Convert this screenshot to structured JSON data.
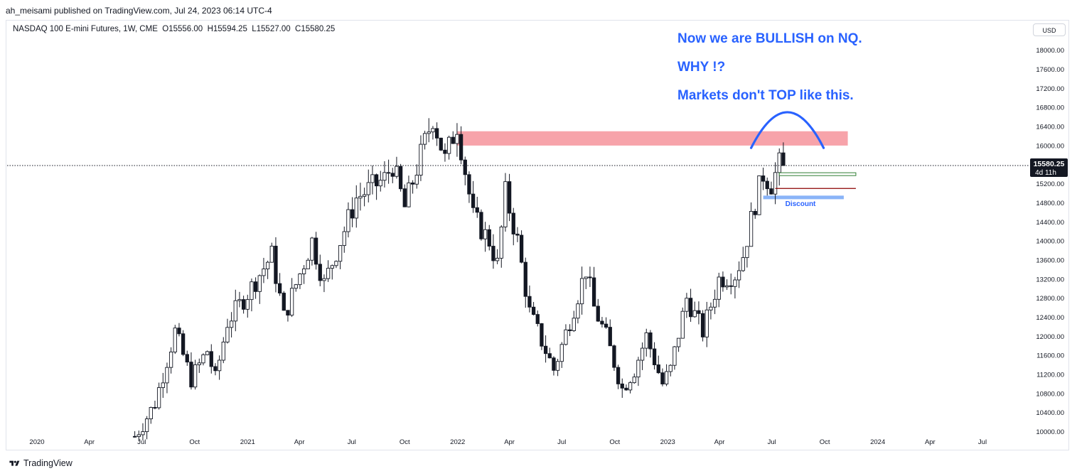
{
  "publisher_line": "ah_meisami published on TradingView.com, Jul 24, 2023 06:14 UTC-4",
  "legend": {
    "symbol": "NASDAQ 100 E-mini Futures, 1W, CME",
    "open": "O15556.00",
    "high": "H15594.25",
    "low": "L15527.00",
    "close": "C15580.25"
  },
  "currency_button": "USD",
  "annotations": {
    "line1": "Now we are BULLISH on NQ.",
    "line2": "WHY !?",
    "line3": "Markets don't TOP like this.",
    "discount_label": "Discount"
  },
  "price_tag": {
    "value": "15580.25",
    "countdown": "4d 11h"
  },
  "footer": {
    "brand": "TradingView"
  },
  "chart_data": {
    "type": "candlestick",
    "timeframe": "1W",
    "y_axis": {
      "ticks": [
        "18000.00",
        "17600.00",
        "17200.00",
        "16800.00",
        "16400.00",
        "16000.00",
        "15600.00",
        "15200.00",
        "14800.00",
        "14400.00",
        "14000.00",
        "13600.00",
        "13200.00",
        "12800.00",
        "12400.00",
        "12000.00",
        "11600.00",
        "11200.00",
        "10800.00",
        "10400.00",
        "10000.00"
      ],
      "range": [
        9900,
        18200
      ]
    },
    "x_axis": {
      "ticks": [
        {
          "label": "2020",
          "date": "2020-01-01"
        },
        {
          "label": "Apr",
          "date": "2020-04-01"
        },
        {
          "label": "Jul",
          "date": "2020-07-01"
        },
        {
          "label": "Oct",
          "date": "2020-10-01"
        },
        {
          "label": "2021",
          "date": "2021-01-01"
        },
        {
          "label": "Apr",
          "date": "2021-04-01"
        },
        {
          "label": "Jul",
          "date": "2021-07-01"
        },
        {
          "label": "Oct",
          "date": "2021-10-01"
        },
        {
          "label": "2022",
          "date": "2022-01-01"
        },
        {
          "label": "Apr",
          "date": "2022-04-01"
        },
        {
          "label": "Jul",
          "date": "2022-07-01"
        },
        {
          "label": "Oct",
          "date": "2022-10-01"
        },
        {
          "label": "2023",
          "date": "2023-01-01"
        },
        {
          "label": "Apr",
          "date": "2023-04-01"
        },
        {
          "label": "Jul",
          "date": "2023-07-01"
        },
        {
          "label": "Oct",
          "date": "2023-10-01"
        },
        {
          "label": "2024",
          "date": "2024-01-01"
        },
        {
          "label": "Apr",
          "date": "2024-04-01"
        },
        {
          "label": "Jul",
          "date": "2024-07-01"
        }
      ]
    },
    "last_close": 15580.25,
    "price_path": [
      [
        "2020-06-19",
        9900
      ],
      [
        "2020-07-03",
        10150
      ],
      [
        "2020-07-24",
        10600
      ],
      [
        "2020-08-28",
        12100
      ],
      [
        "2020-09-25",
        11100
      ],
      [
        "2020-10-23",
        11700
      ],
      [
        "2020-11-06",
        11100
      ],
      [
        "2020-11-27",
        12300
      ],
      [
        "2021-01-01",
        12900
      ],
      [
        "2021-02-12",
        13700
      ],
      [
        "2021-03-05",
        12400
      ],
      [
        "2021-04-23",
        14000
      ],
      [
        "2021-05-14",
        13100
      ],
      [
        "2021-07-09",
        14900
      ],
      [
        "2021-08-27",
        15300
      ],
      [
        "2021-09-10",
        15600
      ],
      [
        "2021-10-01",
        14700
      ],
      [
        "2021-10-29",
        15800
      ],
      [
        "2021-11-19",
        16600
      ],
      [
        "2021-12-10",
        15700
      ],
      [
        "2021-12-31",
        16450
      ],
      [
        "2022-01-28",
        14500
      ],
      [
        "2022-02-25",
        14000
      ],
      [
        "2022-03-11",
        13500
      ],
      [
        "2022-03-25",
        15000
      ],
      [
        "2022-04-15",
        14000
      ],
      [
        "2022-05-06",
        12500
      ],
      [
        "2022-06-17",
        11300
      ],
      [
        "2022-07-01",
        11800
      ],
      [
        "2022-08-12",
        13400
      ],
      [
        "2022-08-26",
        12600
      ],
      [
        "2022-09-16",
        12000
      ],
      [
        "2022-10-14",
        10900
      ],
      [
        "2022-11-04",
        11300
      ],
      [
        "2022-11-25",
        12000
      ],
      [
        "2022-12-23",
        11000
      ],
      [
        "2023-01-06",
        11300
      ],
      [
        "2023-02-03",
        12800
      ],
      [
        "2023-03-03",
        12100
      ],
      [
        "2023-03-31",
        13200
      ],
      [
        "2023-04-28",
        13300
      ],
      [
        "2023-05-12",
        13700
      ],
      [
        "2023-06-02",
        14800
      ],
      [
        "2023-06-16",
        15400
      ],
      [
        "2023-06-30",
        15200
      ],
      [
        "2023-07-21",
        15800
      ]
    ],
    "zones": [
      {
        "label": "",
        "color": "#f7a3aa",
        "from_date": "2021-12-31",
        "to_date": "2023-11-10",
        "low": 16000,
        "high": 16300
      },
      {
        "label": "Discount",
        "color": "#8ab4f8",
        "from_date": "2023-06-16",
        "to_date": "2023-11-03",
        "low": 14875,
        "high": 14950
      }
    ],
    "lines": [
      {
        "color": "#2e7d32",
        "from_date": "2023-07-14",
        "to_date": "2023-11-24",
        "low": 15370,
        "high": 15430
      },
      {
        "color": "#8b0000",
        "from_date": "2023-07-07",
        "to_date": "2023-11-24",
        "price": 15100
      }
    ],
    "arc": {
      "color": "#2962ff",
      "from_date": "2023-05-26",
      "to_date": "2023-09-29",
      "peak_price": 16700,
      "end_price": 15950
    }
  }
}
